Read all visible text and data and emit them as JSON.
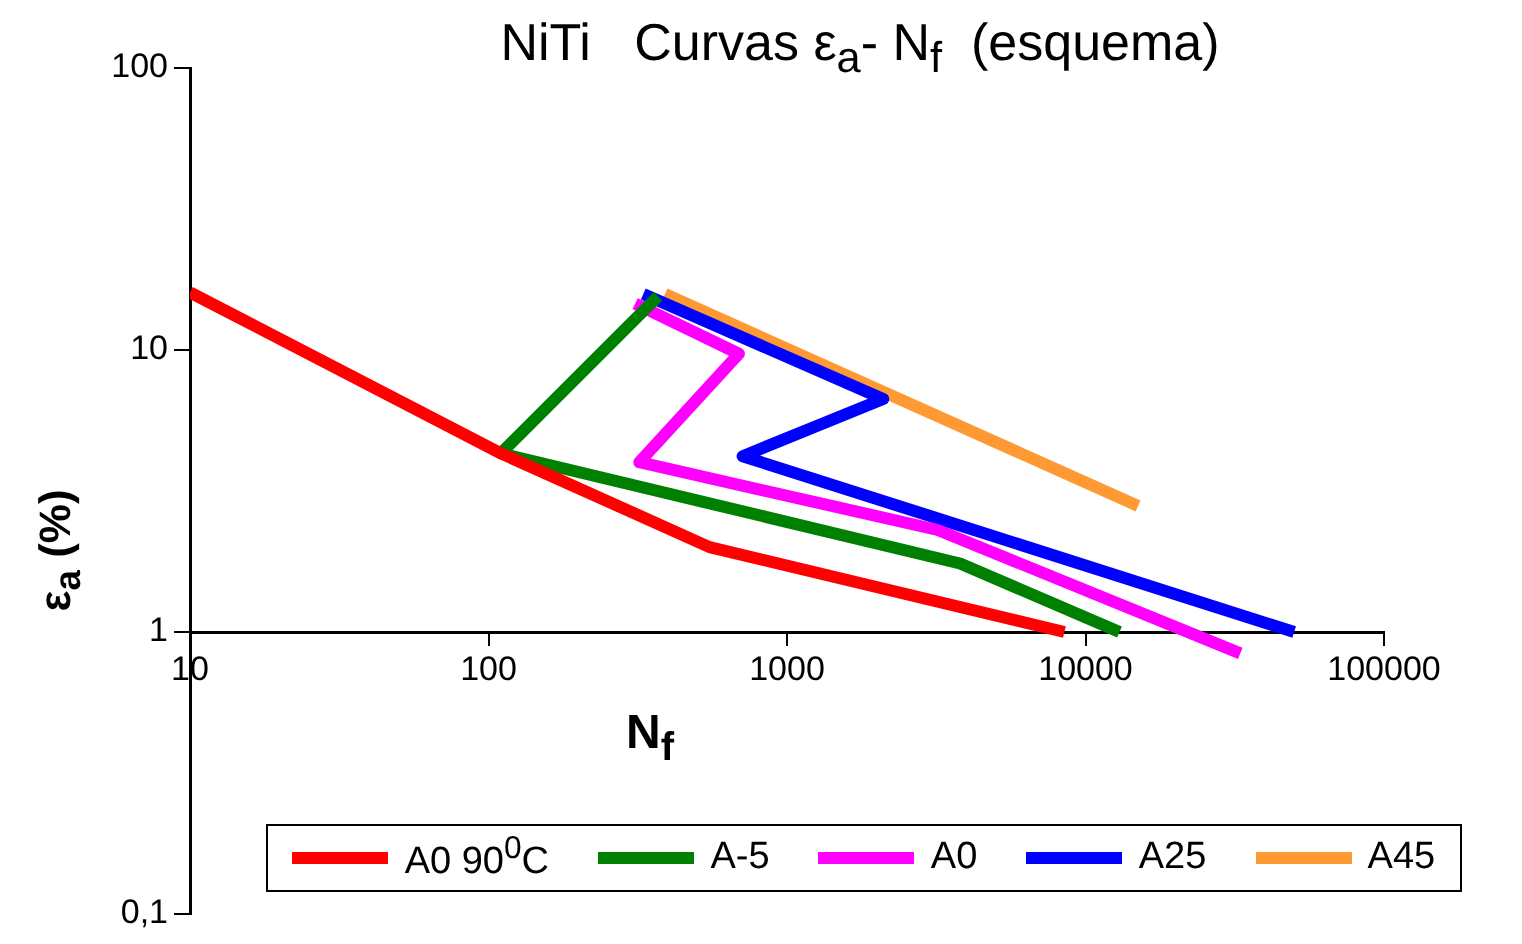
{
  "chart_data": {
    "type": "line",
    "title": "NiTi   Curvas ε$_{a}$- N$_{f}$  (esquema)",
    "xlabel": "N$_{f}$",
    "ylabel": "ε$_{a}$ (%)",
    "log": "xy",
    "grid": false,
    "legend": "bottom",
    "xlim": [
      10,
      100000
    ],
    "xticks": [
      10,
      100,
      1000,
      10000,
      100000
    ],
    "ylim": [
      0.1,
      100
    ],
    "yticks": [
      {
        "value": 0.1,
        "label": "0,1"
      },
      1,
      10,
      100
    ],
    "series": [
      {
        "name": "A0 90$^{0}$C",
        "color": "#ff0000",
        "x": [
          10,
          110,
          550,
          8500
        ],
        "values": [
          16,
          4.3,
          2,
          1
        ]
      },
      {
        "name": "A-5",
        "color": "#008000",
        "x": [
          370,
          110,
          3800,
          13000
        ],
        "values": [
          15.5,
          4.3,
          1.75,
          1
        ]
      },
      {
        "name": "A0",
        "color": "#ff00ff",
        "x": [
          310,
          690,
          320,
          3200,
          33000
        ],
        "values": [
          14.6,
          9.7,
          4,
          2.3,
          0.84
        ]
      },
      {
        "name": "A25",
        "color": "#0000ff",
        "x": [
          330,
          2100,
          710,
          50000
        ],
        "values": [
          15.8,
          6.7,
          4.2,
          1
        ]
      },
      {
        "name": "A45",
        "color": "#ff9933",
        "x": [
          390,
          15000
        ],
        "values": [
          15.8,
          2.8
        ]
      }
    ]
  }
}
